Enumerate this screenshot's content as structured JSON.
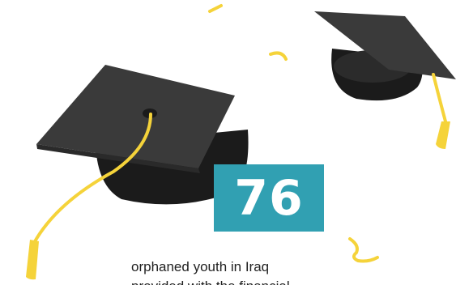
{
  "stat": {
    "value": "76",
    "caption_lines": [
      "orphaned youth in Iraq",
      "provided with the financial"
    ]
  },
  "colors": {
    "badge": "#31a0b2",
    "cap_board": "#3a3a3a",
    "cap_base": "#1b1b1b",
    "tassel": "#f5d33a",
    "confetti": "#f5d33a",
    "text": "#1f1f1f"
  },
  "icons": {
    "large_cap": "graduation-cap-icon",
    "small_cap": "graduation-cap-icon",
    "confetti": "confetti-icon"
  }
}
